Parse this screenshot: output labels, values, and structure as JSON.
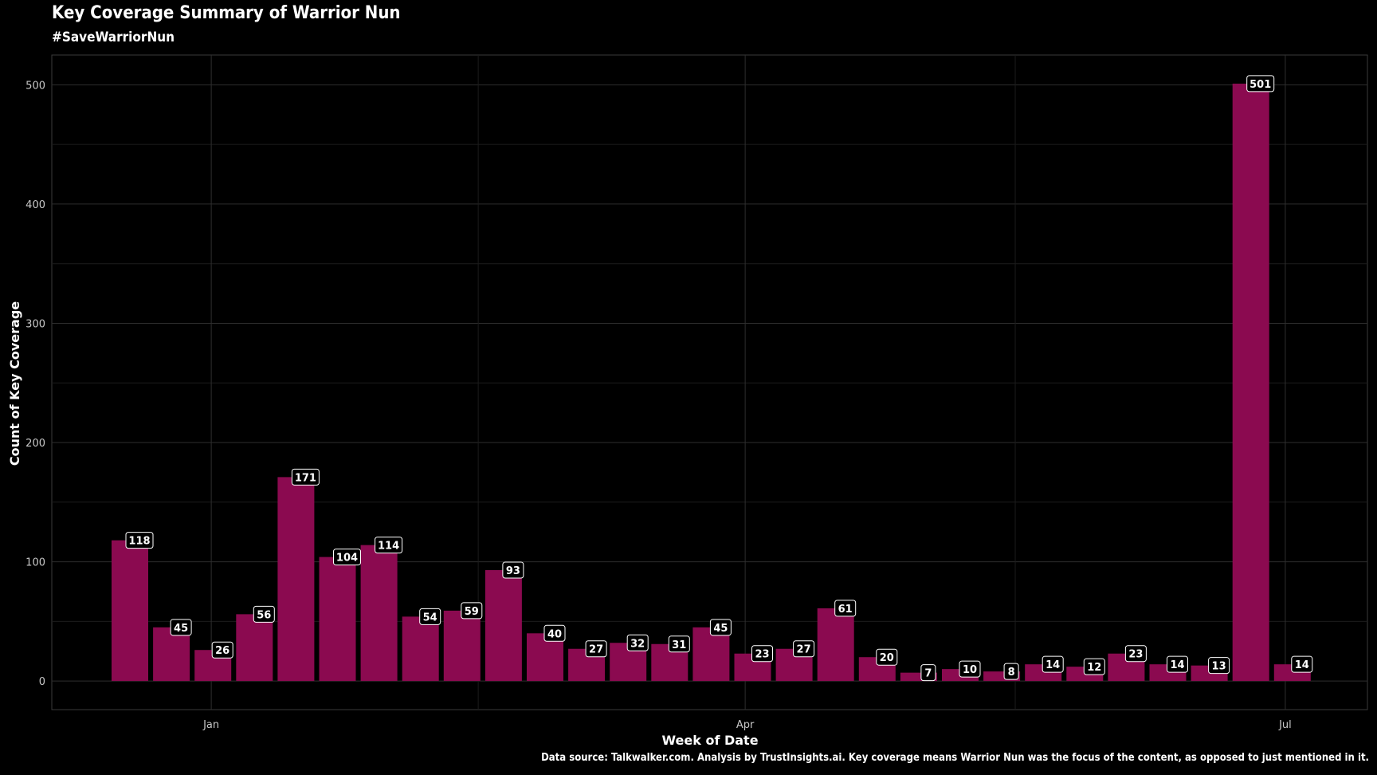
{
  "chart_data": {
    "type": "bar",
    "title": "Key Coverage Summary of Warrior Nun",
    "subtitle": "#SaveWarriorNun",
    "xlabel": "Week of Date",
    "ylabel": "Count of Key Coverage",
    "caption": "Data source: Talkwalker.com. Analysis by TrustInsights.ai. Key coverage means Warrior Nun was the focus of the content, as opposed to just mentioned in it.",
    "ylim": [
      -24,
      525
    ],
    "yticks": [
      0,
      100,
      200,
      300,
      400,
      500
    ],
    "xticks": [
      {
        "label": "Jan",
        "week_index": 1.96
      },
      {
        "label": "Apr",
        "week_index": 14.82
      },
      {
        "label": "Jul",
        "week_index": 27.83
      }
    ],
    "values": [
      118,
      45,
      26,
      56,
      171,
      104,
      114,
      54,
      59,
      93,
      40,
      27,
      32,
      31,
      45,
      23,
      27,
      61,
      20,
      7,
      10,
      8,
      14,
      12,
      23,
      14,
      13,
      501,
      14
    ],
    "grid": true,
    "bar_color": "#8b0a50",
    "background": "#000000"
  }
}
